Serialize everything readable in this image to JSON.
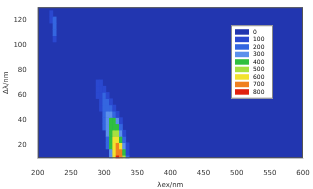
{
  "chart_data": {
    "type": "heatmap",
    "x_label": "λex/nm",
    "y_label": "Δλ/nm",
    "xlim": [
      200,
      600
    ],
    "xticks": [
      200,
      250,
      300,
      350,
      400,
      450,
      500,
      550,
      600
    ],
    "ylim": [
      10,
      130
    ],
    "yticks": [
      20,
      40,
      60,
      80,
      100,
      120
    ],
    "grid": false,
    "legend": "upper right",
    "colorbar": {
      "range": [
        0,
        800
      ],
      "ticks": [
        0,
        100,
        200,
        300,
        400,
        500,
        600,
        700,
        800
      ],
      "colors": [
        "#2236b0",
        "#2a48d0",
        "#3466e0",
        "#5a90ec",
        "#2fbf3f",
        "#a6e040",
        "#f2e22e",
        "#f08020",
        "#e02010"
      ]
    },
    "cells": [
      [
        310,
        10,
        300
      ],
      [
        315,
        10,
        600
      ],
      [
        320,
        10,
        800
      ],
      [
        325,
        10,
        750
      ],
      [
        330,
        10,
        500
      ],
      [
        335,
        10,
        200
      ],
      [
        310,
        15,
        300
      ],
      [
        315,
        15,
        600
      ],
      [
        320,
        15,
        780
      ],
      [
        325,
        15,
        700
      ],
      [
        330,
        15,
        450
      ],
      [
        335,
        15,
        150
      ],
      [
        305,
        20,
        200
      ],
      [
        310,
        20,
        400
      ],
      [
        315,
        20,
        650
      ],
      [
        320,
        20,
        720
      ],
      [
        325,
        20,
        600
      ],
      [
        330,
        20,
        350
      ],
      [
        335,
        20,
        100
      ],
      [
        305,
        25,
        250
      ],
      [
        310,
        25,
        450
      ],
      [
        315,
        25,
        600
      ],
      [
        320,
        25,
        620
      ],
      [
        325,
        25,
        480
      ],
      [
        330,
        25,
        250
      ],
      [
        305,
        30,
        300
      ],
      [
        310,
        30,
        450
      ],
      [
        315,
        30,
        520
      ],
      [
        320,
        30,
        500
      ],
      [
        325,
        30,
        380
      ],
      [
        330,
        30,
        150
      ],
      [
        300,
        35,
        200
      ],
      [
        305,
        35,
        350
      ],
      [
        310,
        35,
        450
      ],
      [
        315,
        35,
        460
      ],
      [
        320,
        35,
        400
      ],
      [
        325,
        35,
        250
      ],
      [
        300,
        40,
        250
      ],
      [
        305,
        40,
        380
      ],
      [
        310,
        40,
        420
      ],
      [
        315,
        40,
        400
      ],
      [
        320,
        40,
        300
      ],
      [
        325,
        40,
        150
      ],
      [
        300,
        45,
        200
      ],
      [
        305,
        45,
        300
      ],
      [
        310,
        45,
        320
      ],
      [
        315,
        45,
        280
      ],
      [
        320,
        45,
        180
      ],
      [
        295,
        50,
        150
      ],
      [
        300,
        50,
        250
      ],
      [
        305,
        50,
        280
      ],
      [
        310,
        50,
        250
      ],
      [
        315,
        50,
        150
      ],
      [
        295,
        55,
        150
      ],
      [
        300,
        55,
        220
      ],
      [
        305,
        55,
        230
      ],
      [
        310,
        55,
        180
      ],
      [
        290,
        60,
        100
      ],
      [
        295,
        60,
        180
      ],
      [
        300,
        60,
        200
      ],
      [
        305,
        60,
        150
      ],
      [
        290,
        65,
        120
      ],
      [
        295,
        65,
        150
      ],
      [
        300,
        65,
        130
      ],
      [
        290,
        70,
        100
      ],
      [
        295,
        70,
        100
      ],
      [
        225,
        105,
        150
      ],
      [
        225,
        110,
        200
      ],
      [
        225,
        115,
        200
      ],
      [
        220,
        120,
        150
      ],
      [
        225,
        120,
        200
      ],
      [
        220,
        125,
        150
      ]
    ]
  }
}
